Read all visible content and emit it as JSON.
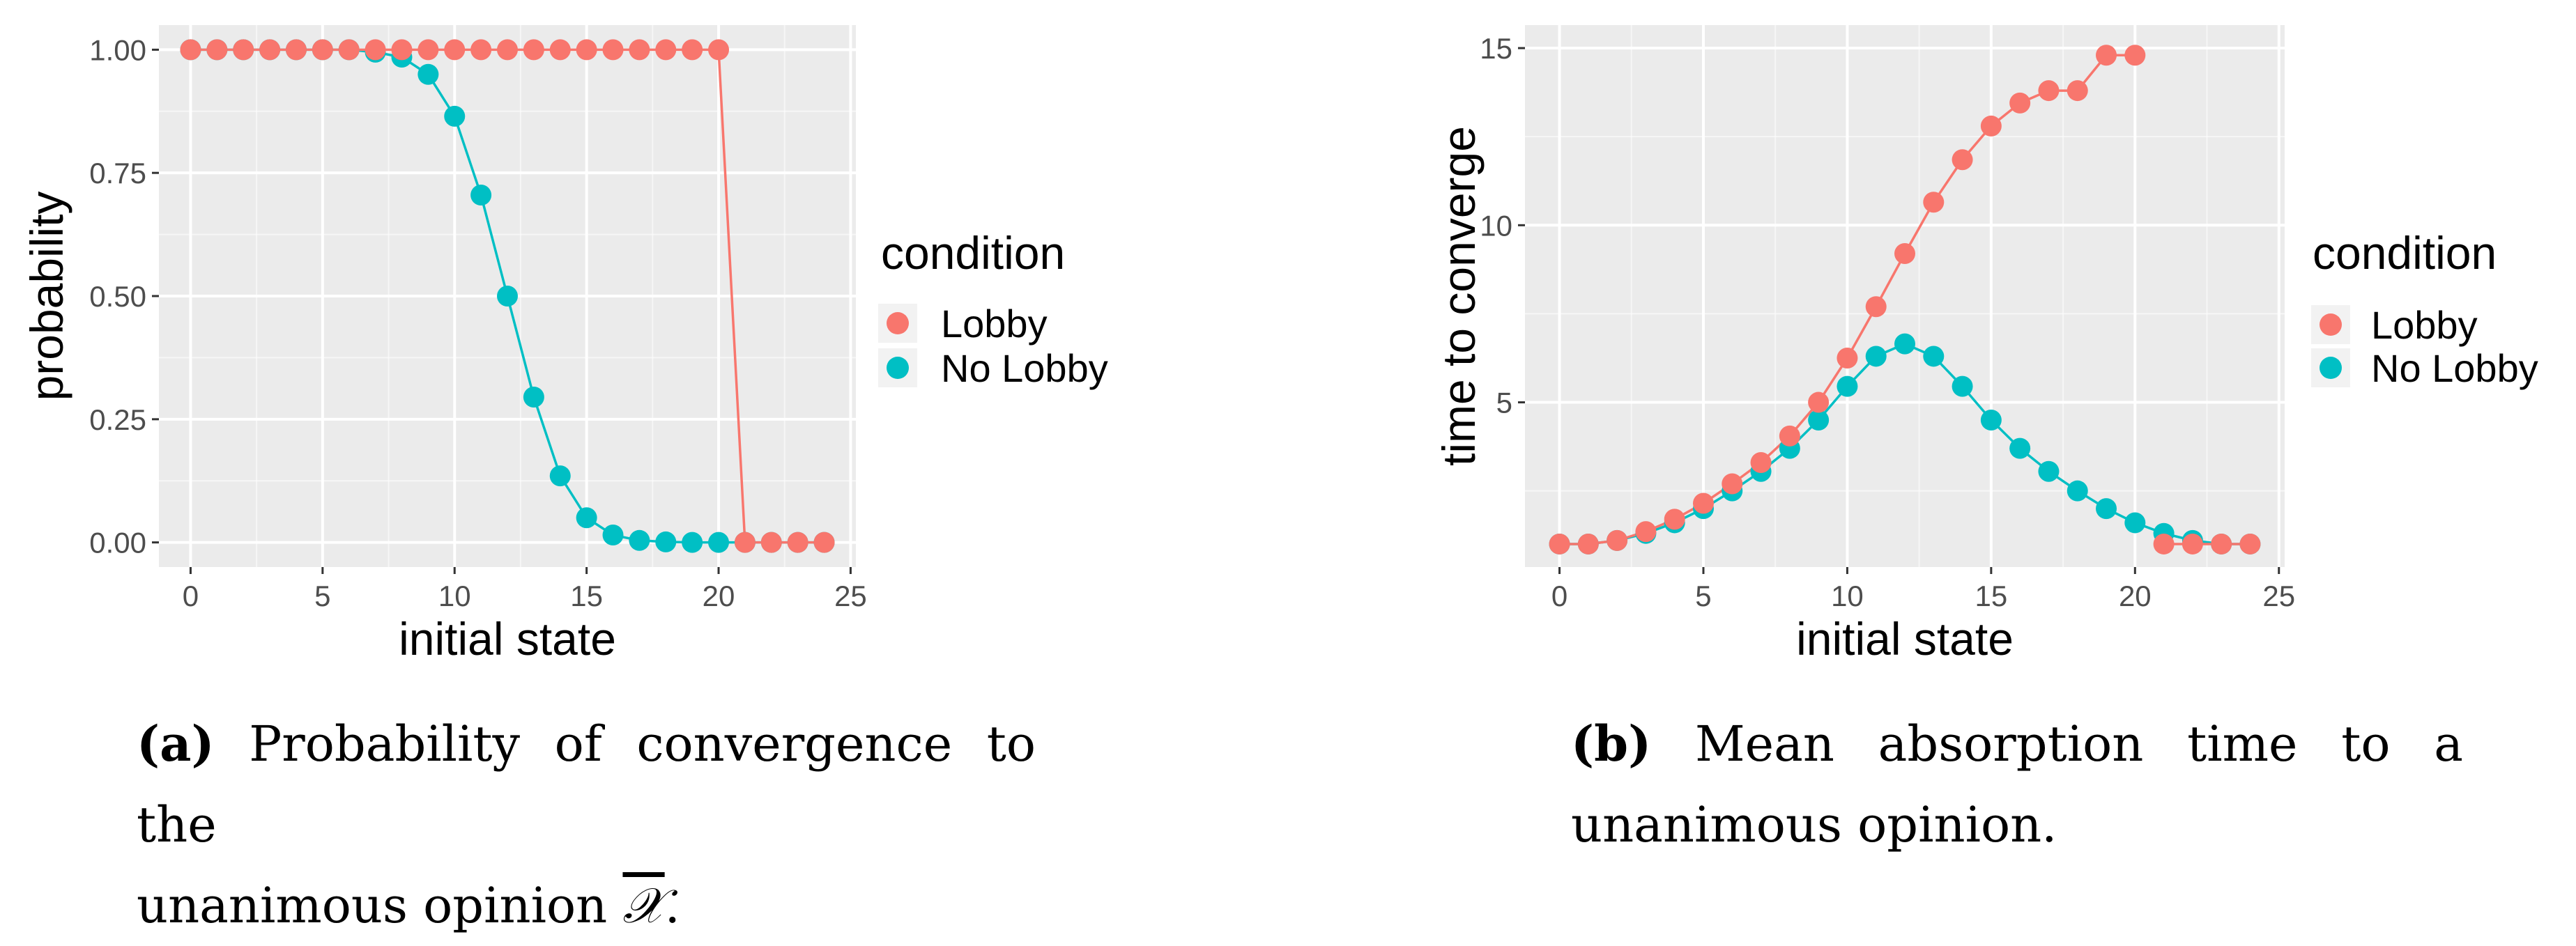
{
  "colors": {
    "lobby": "#F8766D",
    "no_lobby": "#00BFC4",
    "panel_bg": "#EBEBEB",
    "grid": "#FFFFFF"
  },
  "chart_data": [
    {
      "type": "line",
      "xlabel": "initial state",
      "ylabel": "probability",
      "xlim": [
        -1.2,
        25.2
      ],
      "ylim": [
        -0.05,
        1.05
      ],
      "xticks": [
        0,
        5,
        10,
        15,
        20,
        25
      ],
      "yticks": [
        0.0,
        0.25,
        0.5,
        0.75,
        1.0
      ],
      "ytick_labels": [
        "0.00",
        "0.25",
        "0.50",
        "0.75",
        "1.00"
      ],
      "legend_title": "condition",
      "legend_position": "right",
      "grid": true,
      "series": [
        {
          "name": "Lobby",
          "x": [
            0,
            1,
            2,
            3,
            4,
            5,
            6,
            7,
            8,
            9,
            10,
            11,
            12,
            13,
            14,
            15,
            16,
            17,
            18,
            19,
            20,
            21,
            22,
            23,
            24
          ],
          "values": [
            1,
            1,
            1,
            1,
            1,
            1,
            1,
            1,
            1,
            1,
            1,
            1,
            1,
            1,
            1,
            1,
            1,
            1,
            1,
            1,
            1,
            0,
            0,
            0,
            0
          ]
        },
        {
          "name": "No Lobby",
          "x": [
            0,
            1,
            2,
            3,
            4,
            5,
            6,
            7,
            8,
            9,
            10,
            11,
            12,
            13,
            14,
            15,
            16,
            17,
            18,
            19,
            20,
            21,
            22,
            23,
            24
          ],
          "values": [
            1,
            1,
            1,
            1,
            1,
            1,
            1,
            0.995,
            0.985,
            0.95,
            0.865,
            0.705,
            0.5,
            0.295,
            0.135,
            0.05,
            0.015,
            0.004,
            0.001,
            0,
            0,
            0,
            0,
            0,
            0
          ]
        }
      ]
    },
    {
      "type": "line",
      "xlabel": "initial state",
      "ylabel": "time to converge",
      "xlim": [
        -1.2,
        25.2
      ],
      "ylim": [
        0.35,
        15.65
      ],
      "xticks": [
        0,
        5,
        10,
        15,
        20,
        25
      ],
      "yticks": [
        5,
        10,
        15
      ],
      "ytick_labels": [
        "5",
        "10",
        "15"
      ],
      "legend_title": "condition",
      "legend_position": "right",
      "grid": true,
      "series": [
        {
          "name": "Lobby",
          "x": [
            0,
            1,
            2,
            3,
            4,
            5,
            6,
            7,
            8,
            9,
            10,
            11,
            12,
            13,
            14,
            15,
            16,
            17,
            18,
            19,
            20
          ],
          "values": [
            1.0,
            1.0,
            1.1,
            1.35,
            1.7,
            2.15,
            2.7,
            3.3,
            4.05,
            5.0,
            6.25,
            7.7,
            9.2,
            10.65,
            11.85,
            12.8,
            13.45,
            13.8,
            13.8,
            14.8,
            14.8
          ]
        },
        {
          "name": "Lobby",
          "x": [
            21,
            22,
            23,
            24
          ],
          "values": [
            1.0,
            1.0,
            1.0,
            1.0
          ]
        },
        {
          "name": "No Lobby",
          "x": [
            0,
            1,
            2,
            3,
            4,
            5,
            6,
            7,
            8,
            9,
            10,
            11,
            12,
            13,
            14,
            15,
            16,
            17,
            18,
            19,
            20,
            21,
            22,
            23,
            24
          ],
          "values": [
            1.0,
            1.0,
            1.1,
            1.3,
            1.6,
            2.0,
            2.5,
            3.05,
            3.7,
            4.5,
            5.45,
            6.3,
            6.65,
            6.3,
            5.45,
            4.5,
            3.7,
            3.05,
            2.5,
            2.0,
            1.6,
            1.3,
            1.1,
            1.0,
            1.0
          ]
        }
      ]
    }
  ],
  "captions": {
    "a": {
      "label": "(a)",
      "line1": "Probability of convergence to the",
      "line2a": "unanimous opinion ",
      "symbol": "𝒳",
      "line2b": "."
    },
    "b": {
      "label": "(b)",
      "line1": "Mean absorption time to a",
      "line2": "unanimous opinion."
    }
  }
}
